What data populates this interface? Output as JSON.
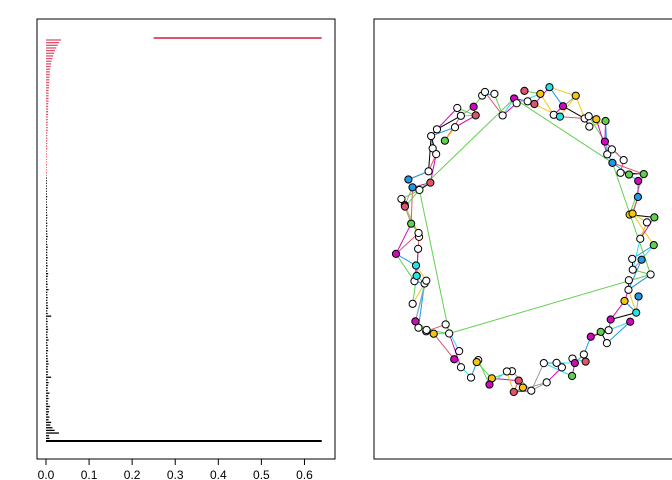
{
  "chart_data": [
    {
      "type": "bar",
      "orientation": "horizontal",
      "xlim": [
        0,
        0.65
      ],
      "ticks": [
        {
          "value": 0.0,
          "label": "0.0"
        },
        {
          "value": 0.1,
          "label": "0.1"
        },
        {
          "value": 0.2,
          "label": "0.2"
        },
        {
          "value": 0.3,
          "label": "0.3"
        },
        {
          "value": 0.4,
          "label": "0.4"
        },
        {
          "value": 0.5,
          "label": "0.5"
        },
        {
          "value": 0.6,
          "label": "0.6"
        }
      ],
      "black_bar_values": [
        0.64,
        0.008,
        0.007,
        0.03,
        0.02,
        0.015,
        0.01,
        0.012,
        0.006,
        0.008,
        0.005,
        0.007,
        0.006,
        0.009,
        0.005,
        0.004,
        0.006,
        0.005,
        0.008,
        0.004,
        0.004,
        0.005,
        0.006,
        0.004,
        0.012,
        0.004,
        0.005,
        0.004,
        0.004,
        0.006,
        0.005,
        0.004,
        0.004,
        0.003,
        0.005,
        0.004,
        0.004,
        0.003,
        0.006,
        0.004,
        0.003,
        0.004,
        0.005,
        0.004,
        0.003,
        0.004,
        0.003,
        0.012,
        0.004,
        0.003,
        0.005,
        0.004,
        0.004,
        0.003,
        0.004,
        0.003,
        0.003,
        0.006,
        0.003,
        0.004,
        0.003,
        0.003,
        0.004,
        0.005,
        0.003,
        0.003,
        0.004,
        0.003,
        0.003,
        0.004,
        0.003,
        0.003,
        0.003,
        0.004,
        0.003,
        0.002,
        0.003,
        0.004,
        0.003,
        0.003,
        0.002,
        0.003,
        0.003,
        0.002,
        0.003,
        0.003,
        0.002,
        0.002,
        0.003,
        0.002,
        0.002,
        0.002,
        0.003,
        0.002,
        0.002,
        0.002,
        0.002,
        0.002,
        0.002,
        0.002
      ],
      "red_bar_values": [
        0.002,
        0.002,
        0.002,
        0.002,
        0.002,
        0.002,
        0.002,
        0.002,
        0.002,
        0.002,
        0.003,
        0.003,
        0.003,
        0.003,
        0.003,
        0.003,
        0.003,
        0.004,
        0.004,
        0.004,
        0.004,
        0.004,
        0.004,
        0.005,
        0.005,
        0.005,
        0.005,
        0.005,
        0.006,
        0.006,
        0.006,
        0.006,
        0.006,
        0.007,
        0.007,
        0.008,
        0.008,
        0.008,
        0.009,
        0.009,
        0.01,
        0.011,
        0.012,
        0.013,
        0.015,
        0.017,
        0.019,
        0.021,
        0.024,
        0.027,
        0.03,
        0.035
      ],
      "top_red_bar": {
        "start": 0.25,
        "end": 0.64
      },
      "colors": {
        "black": "#000000",
        "red": "#DF536B"
      }
    },
    {
      "type": "network",
      "layout": "ring",
      "node_count": 110,
      "edge_palette": [
        "#61D04F",
        "#DF536B",
        "#2297E6",
        "#28E2E5",
        "#CD0BBC",
        "#F5C710",
        "#000000",
        "#9E9E9E"
      ],
      "node_fill_palette": [
        "#ffffff",
        "#28E2E5",
        "#61D04F",
        "#CD0BBC",
        "#2297E6",
        "#F5C710",
        "#DF536B"
      ],
      "node_outline": "#000000",
      "seed": 17
    }
  ]
}
